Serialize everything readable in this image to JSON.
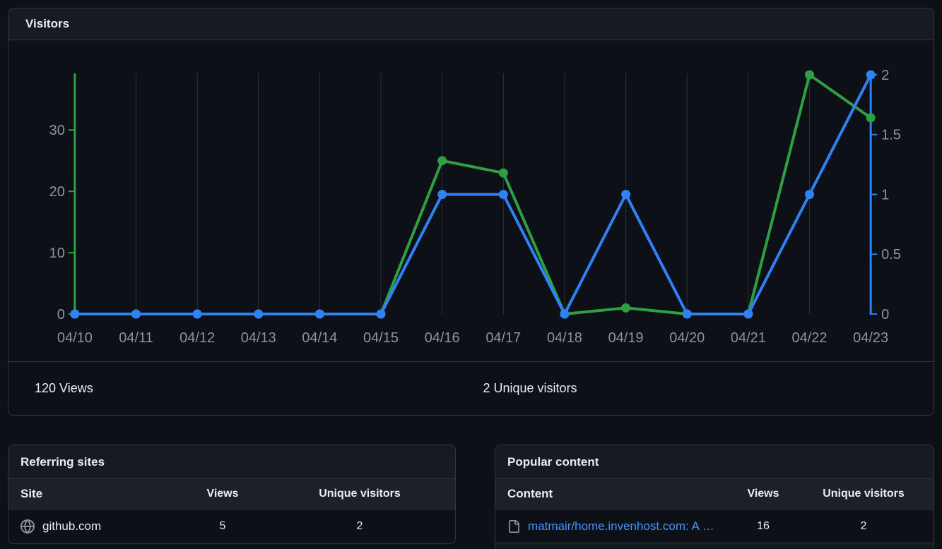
{
  "visitors": {
    "title": "Visitors",
    "total_views": "120 Views",
    "total_unique": "2 Unique visitors"
  },
  "chart_data": {
    "type": "line",
    "title": "Visitors",
    "categories": [
      "04/10",
      "04/11",
      "04/12",
      "04/13",
      "04/14",
      "04/15",
      "04/16",
      "04/17",
      "04/18",
      "04/19",
      "04/20",
      "04/21",
      "04/22",
      "04/23"
    ],
    "series": [
      {
        "name": "Views",
        "axis": "left",
        "color": "#2ea043",
        "values": [
          0,
          0,
          0,
          0,
          0,
          0,
          25,
          23,
          0,
          1,
          0,
          0,
          39,
          32
        ]
      },
      {
        "name": "Unique visitors",
        "axis": "right",
        "color": "#2f81f7",
        "values": [
          0,
          0,
          0,
          0,
          0,
          0,
          1,
          1,
          0,
          1,
          0,
          0,
          1,
          2
        ]
      }
    ],
    "left_axis": {
      "ticks": [
        0,
        10,
        20,
        30
      ],
      "max": 39,
      "color": "#2ea043"
    },
    "right_axis": {
      "ticks": [
        0,
        0.5,
        1,
        1.5,
        2
      ],
      "max": 2,
      "color": "#2f81f7"
    },
    "grid": true,
    "legend_position": "none",
    "tick_label_color": "#8b949e"
  },
  "referring_sites": {
    "title": "Referring sites",
    "columns": [
      "Site",
      "Views",
      "Unique visitors"
    ],
    "rows": [
      {
        "site": "github.com",
        "views": "5",
        "unique": "2"
      }
    ]
  },
  "popular_content": {
    "title": "Popular content",
    "columns": [
      "Content",
      "Views",
      "Unique visitors"
    ],
    "rows": [
      {
        "content": "matmair/home.invenhost.com: A …",
        "views": "16",
        "unique": "2"
      }
    ]
  },
  "colors": {
    "background": "#0d1117",
    "card_border": "#30363d",
    "card_header_bg": "#161b22",
    "table_header_bg": "#1c2128",
    "views_green": "#2ea043",
    "unique_blue": "#2f81f7",
    "link_blue": "#4493f8",
    "muted_text": "#8b949e",
    "primary_text": "#e6edf3",
    "gridline": "#2d333b"
  }
}
